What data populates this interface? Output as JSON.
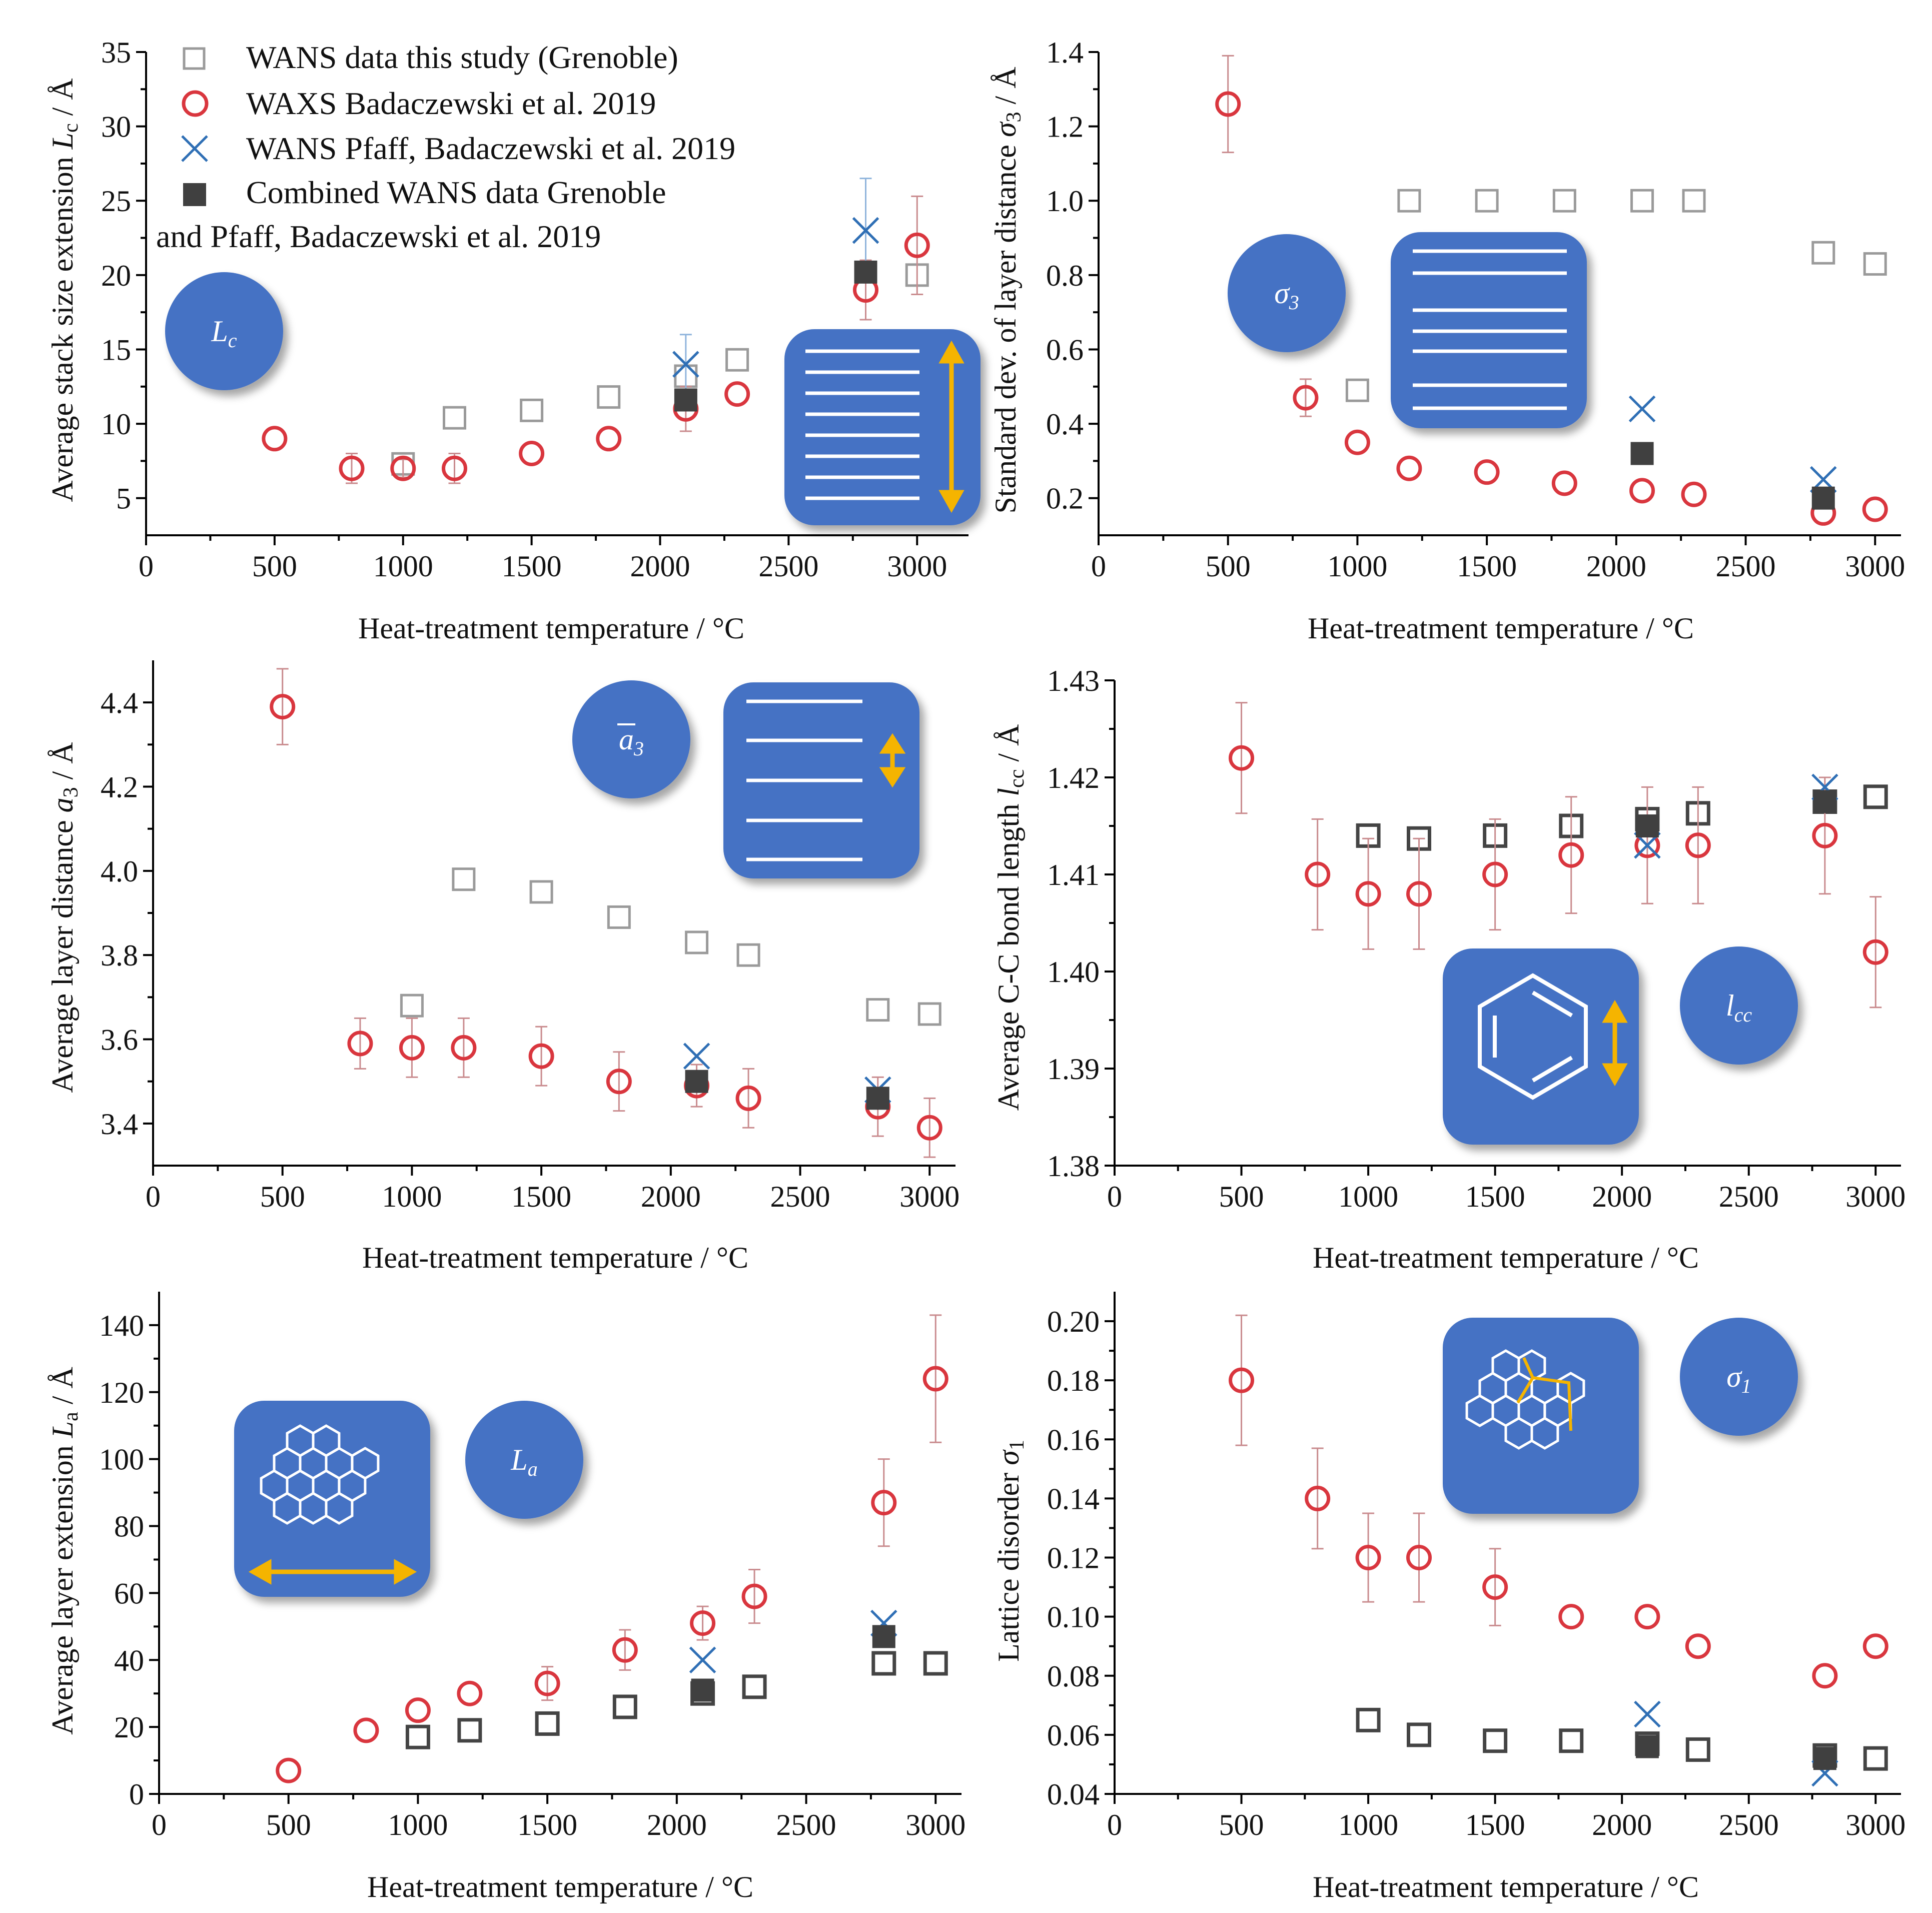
{
  "colors": {
    "wans_grenoble": "#9a9a9a",
    "wans_grenoble_dark": "#444444",
    "waxs": "#d9363e",
    "wans_pfaff": "#2f6fb5",
    "combined": "#404040",
    "icon_blue": "#4472c4",
    "icon_accent": "#f5b400",
    "errbar_waxs": "#c98b8e",
    "errbar_gray": "#9a9a9a"
  },
  "legend": {
    "items": [
      {
        "label": "WANS data this study (Grenoble)",
        "marker": "open-square"
      },
      {
        "label": "WAXS Badaczewski et al. 2019",
        "marker": "open-circle"
      },
      {
        "label": "WANS Pfaff, Badaczewski et al. 2019",
        "marker": "cross"
      },
      {
        "label": "Combined WANS data Grenoble",
        "marker": "filled-square"
      }
    ],
    "continuation": "and Pfaff, Badaczewski et al. 2019"
  },
  "icons": {
    "lc": {
      "symbol": "L",
      "sub": "c"
    },
    "sigma3": {
      "symbol": "σ",
      "sub": "3"
    },
    "a3": {
      "symbol": "a",
      "sub": "3"
    },
    "lcc": {
      "symbol": "l",
      "sub": "cc"
    },
    "la": {
      "symbol": "L",
      "sub": "a"
    },
    "sigma1": {
      "symbol": "σ",
      "sub": "1"
    }
  },
  "chart_data": [
    {
      "id": "lc",
      "type": "scatter",
      "xlabel": "Heat-treatment temperature / °C",
      "ylabel_parts": [
        "Average stack size extension ",
        "L",
        "c",
        " / Å"
      ],
      "xlim": [
        0,
        3200
      ],
      "ylim": [
        2.5,
        35
      ],
      "xticks": [
        0,
        500,
        1000,
        1500,
        2000,
        2500,
        3000
      ],
      "yticks": [
        5,
        10,
        15,
        20,
        25,
        30,
        35
      ],
      "ytick_labels": [
        "5",
        "10",
        "15",
        "20",
        "25",
        "30",
        "35"
      ],
      "series": [
        {
          "name": "WANS data this study (Grenoble)",
          "marker": "open-square-light",
          "x": [
            1000,
            1200,
            1500,
            1800,
            2100,
            2300,
            3000
          ],
          "y": [
            7.3,
            10.4,
            10.9,
            11.8,
            13.2,
            14.3,
            20.0
          ]
        },
        {
          "name": "WAXS Badaczewski et al. 2019",
          "marker": "open-circle",
          "x": [
            500,
            800,
            1000,
            1200,
            1500,
            1800,
            2100,
            2300,
            2800,
            3000
          ],
          "y": [
            9.0,
            7.0,
            7.0,
            7.0,
            8.0,
            9.0,
            11.0,
            12.0,
            19.0,
            22.0
          ],
          "err": [
            0,
            1.0,
            0.6,
            1.0,
            0,
            0,
            1.5,
            0,
            2.0,
            3.3
          ]
        },
        {
          "name": "WANS Pfaff, Badaczewski et al. 2019",
          "marker": "cross",
          "x": [
            2100,
            2800
          ],
          "y": [
            14.0,
            23.0
          ],
          "err": [
            2.0,
            3.5
          ]
        },
        {
          "name": "Combined WANS data Grenoble and Pfaff, Badaczewski et al. 2019",
          "marker": "filled-square",
          "x": [
            2100,
            2800
          ],
          "y": [
            11.6,
            20.2
          ]
        }
      ]
    },
    {
      "id": "sigma3",
      "type": "scatter",
      "xlabel": "Heat-treatment temperature / °C",
      "ylabel_parts": [
        "Standard dev. of layer distance ",
        "σ",
        "3",
        " / Å"
      ],
      "xlim": [
        0,
        3100
      ],
      "ylim": [
        0.1,
        1.4
      ],
      "xticks": [
        0,
        500,
        1000,
        1500,
        2000,
        2500,
        3000
      ],
      "yticks": [
        0.2,
        0.4,
        0.6,
        0.8,
        1.0,
        1.2,
        1.4
      ],
      "ytick_labels": [
        "0.2",
        "0.4",
        "0.6",
        "0.8",
        "1.0",
        "1.2",
        "1.4"
      ],
      "series": [
        {
          "name": "WANS data this study (Grenoble)",
          "marker": "open-square-light",
          "x": [
            1000,
            1200,
            1500,
            1800,
            2100,
            2300,
            2800,
            3000
          ],
          "y": [
            0.49,
            1.0,
            1.0,
            1.0,
            1.0,
            1.0,
            0.86,
            0.83
          ]
        },
        {
          "name": "WAXS Badaczewski et al. 2019",
          "marker": "open-circle",
          "x": [
            500,
            800,
            1000,
            1200,
            1500,
            1800,
            2100,
            2300,
            2800,
            3000
          ],
          "y": [
            1.26,
            0.47,
            0.35,
            0.28,
            0.27,
            0.24,
            0.22,
            0.21,
            0.16,
            0.17
          ],
          "err": [
            0.13,
            0.05,
            0,
            0,
            0,
            0,
            0,
            0,
            0,
            0
          ]
        },
        {
          "name": "WANS Pfaff, Badaczewski et al. 2019",
          "marker": "cross",
          "x": [
            2100,
            2800
          ],
          "y": [
            0.44,
            0.25
          ]
        },
        {
          "name": "Combined WANS data Grenoble and Pfaff, Badaczewski et al. 2019",
          "marker": "filled-square",
          "x": [
            2100,
            2800
          ],
          "y": [
            0.32,
            0.2
          ]
        }
      ]
    },
    {
      "id": "a3",
      "type": "scatter",
      "xlabel": "Heat-treatment temperature / °C",
      "ylabel_parts": [
        "Average layer distance ",
        "a",
        "3",
        " / Å"
      ],
      "xlim": [
        0,
        3100
      ],
      "ylim": [
        3.3,
        4.5
      ],
      "xticks": [
        0,
        500,
        1000,
        1500,
        2000,
        2500,
        3000
      ],
      "yticks": [
        3.4,
        3.6,
        3.8,
        4.0,
        4.2,
        4.4
      ],
      "ytick_labels": [
        "3.4",
        "3.6",
        "3.8",
        "4.0",
        "4.2",
        "4.4"
      ],
      "series": [
        {
          "name": "WANS data this study (Grenoble)",
          "marker": "open-square-light",
          "x": [
            1000,
            1200,
            1500,
            1800,
            2100,
            2300,
            2800,
            3000
          ],
          "y": [
            3.68,
            3.98,
            3.95,
            3.89,
            3.83,
            3.8,
            3.67,
            3.66
          ]
        },
        {
          "name": "WAXS Badaczewski et al. 2019",
          "marker": "open-circle",
          "x": [
            500,
            800,
            1000,
            1200,
            1500,
            1800,
            2100,
            2300,
            2800,
            3000
          ],
          "y": [
            4.39,
            3.59,
            3.58,
            3.58,
            3.56,
            3.5,
            3.49,
            3.46,
            3.44,
            3.39
          ],
          "err": [
            0.09,
            0.06,
            0.07,
            0.07,
            0.07,
            0.07,
            0.05,
            0.07,
            0.07,
            0.07
          ]
        },
        {
          "name": "WANS Pfaff, Badaczewski et al. 2019",
          "marker": "cross",
          "x": [
            2100,
            2800
          ],
          "y": [
            3.56,
            3.48
          ]
        },
        {
          "name": "Combined WANS data Grenoble and Pfaff, Badaczewski et al. 2019",
          "marker": "filled-square",
          "x": [
            2100,
            2800
          ],
          "y": [
            3.5,
            3.46
          ]
        }
      ]
    },
    {
      "id": "lcc",
      "type": "scatter",
      "xlabel": "Heat-treatment temperature / °C",
      "ylabel_parts": [
        "Average C-C bond length ",
        "l",
        "cc",
        " / Å"
      ],
      "xlim": [
        0,
        3100
      ],
      "ylim": [
        1.38,
        1.43
      ],
      "xticks": [
        0,
        500,
        1000,
        1500,
        2000,
        2500,
        3000
      ],
      "yticks": [
        1.38,
        1.39,
        1.4,
        1.41,
        1.42,
        1.43
      ],
      "ytick_labels": [
        "1.38",
        "1.39",
        "1.40",
        "1.41",
        "1.42",
        "1.43"
      ],
      "series": [
        {
          "name": "WANS data this study (Grenoble)",
          "marker": "open-square-dark",
          "x": [
            1000,
            1200,
            1500,
            1800,
            2100,
            2300,
            2800,
            3000
          ],
          "y": [
            1.414,
            1.4137,
            1.414,
            1.415,
            1.4157,
            1.4163,
            1.4175,
            1.418
          ]
        },
        {
          "name": "WAXS Badaczewski et al. 2019",
          "marker": "open-circle",
          "x": [
            500,
            800,
            1000,
            1200,
            1500,
            1800,
            2100,
            2300,
            2800,
            3000
          ],
          "y": [
            1.422,
            1.41,
            1.408,
            1.408,
            1.41,
            1.412,
            1.413,
            1.413,
            1.414,
            1.402
          ],
          "err": [
            0.0057,
            0.0057,
            0.0057,
            0.0057,
            0.0057,
            0.006,
            0.006,
            0.006,
            0.006,
            0.0057
          ]
        },
        {
          "name": "WANS Pfaff, Badaczewski et al. 2019",
          "marker": "cross",
          "x": [
            2100,
            2800
          ],
          "y": [
            1.413,
            1.419
          ]
        },
        {
          "name": "Combined WANS data Grenoble and Pfaff, Badaczewski et al. 2019",
          "marker": "filled-square",
          "x": [
            2100,
            2800
          ],
          "y": [
            1.415,
            1.4175
          ]
        }
      ]
    },
    {
      "id": "la",
      "type": "scatter",
      "xlabel": "Heat-treatment temperature / °C",
      "ylabel_parts": [
        "Average layer extension ",
        "L",
        "a",
        " / Å"
      ],
      "xlim": [
        0,
        3100
      ],
      "ylim": [
        0,
        150
      ],
      "xticks": [
        0,
        500,
        1000,
        1500,
        2000,
        2500,
        3000
      ],
      "yticks": [
        0,
        20,
        40,
        60,
        80,
        100,
        120,
        140
      ],
      "ytick_labels": [
        "0",
        "20",
        "40",
        "60",
        "80",
        "100",
        "120",
        "140"
      ],
      "series": [
        {
          "name": "WANS data this study (Grenoble)",
          "marker": "open-square-dark",
          "x": [
            1000,
            1200,
            1500,
            1800,
            2100,
            2300,
            2800,
            3000
          ],
          "y": [
            17,
            19,
            21,
            26,
            30,
            32,
            39,
            39
          ]
        },
        {
          "name": "WAXS Badaczewski et al. 2019",
          "marker": "open-circle",
          "x": [
            500,
            800,
            1000,
            1200,
            1500,
            1800,
            2100,
            2300,
            2800,
            3000
          ],
          "y": [
            7,
            19,
            25,
            30,
            33,
            43,
            51,
            59,
            87,
            124
          ],
          "err": [
            0,
            0,
            0,
            0,
            5,
            6,
            5,
            8,
            13,
            19
          ]
        },
        {
          "name": "WANS Pfaff, Badaczewski et al. 2019",
          "marker": "cross",
          "x": [
            2100,
            2800
          ],
          "y": [
            40,
            51
          ]
        },
        {
          "name": "Combined WANS data Grenoble and Pfaff, Badaczewski et al. 2019",
          "marker": "filled-square",
          "x": [
            2100,
            2800
          ],
          "y": [
            31,
            47
          ]
        }
      ]
    },
    {
      "id": "sigma1",
      "type": "scatter",
      "xlabel": "Heat-treatment temperature / °C",
      "ylabel_parts": [
        "Lattice disorder ",
        "σ",
        "1",
        ""
      ],
      "xlim": [
        0,
        3100
      ],
      "ylim": [
        0.04,
        0.21
      ],
      "xticks": [
        0,
        500,
        1000,
        1500,
        2000,
        2500,
        3000
      ],
      "yticks": [
        0.04,
        0.06,
        0.08,
        0.1,
        0.12,
        0.14,
        0.16,
        0.18,
        0.2
      ],
      "ytick_labels": [
        "0.04",
        "0.06",
        "0.08",
        "0.10",
        "0.12",
        "0.14",
        "0.16",
        "0.18",
        "0.20"
      ],
      "series": [
        {
          "name": "WANS data this study (Grenoble)",
          "marker": "open-square-dark",
          "x": [
            1000,
            1200,
            1500,
            1800,
            2100,
            2300,
            2800,
            3000
          ],
          "y": [
            0.065,
            0.06,
            0.058,
            0.058,
            0.057,
            0.055,
            0.053,
            0.052
          ]
        },
        {
          "name": "WAXS Badaczewski et al. 2019",
          "marker": "open-circle",
          "x": [
            500,
            800,
            1000,
            1200,
            1500,
            1800,
            2100,
            2300,
            2800,
            3000
          ],
          "y": [
            0.18,
            0.14,
            0.12,
            0.12,
            0.11,
            0.1,
            0.1,
            0.09,
            0.08,
            0.09
          ],
          "err": [
            0.022,
            0.017,
            0.015,
            0.015,
            0.013,
            0,
            0,
            0,
            0,
            0
          ]
        },
        {
          "name": "WANS Pfaff, Badaczewski et al. 2019",
          "marker": "cross",
          "x": [
            2100,
            2800
          ],
          "y": [
            0.067,
            0.047
          ]
        },
        {
          "name": "Combined WANS data Grenoble and Pfaff, Badaczewski et al. 2019",
          "marker": "filled-square",
          "x": [
            2100,
            2800
          ],
          "y": [
            0.056,
            0.052
          ]
        }
      ]
    }
  ]
}
